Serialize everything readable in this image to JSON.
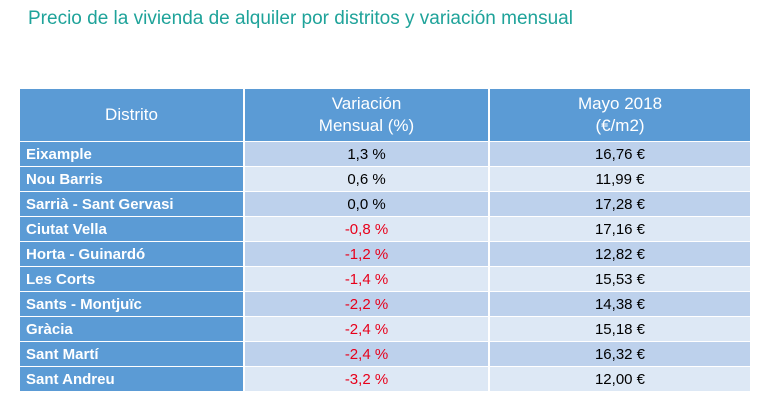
{
  "title": "Precio de la vivienda de alquiler por distritos y variación mensual",
  "table": {
    "headers": {
      "district": "Distrito",
      "variation_line1": "Variación",
      "variation_line2": "Mensual (%)",
      "price_line1": "Mayo 2018",
      "price_line2": "(€/m2)"
    },
    "rows": [
      {
        "district": "Eixample",
        "variation": "1,3 %",
        "price": "16,76 €",
        "negative": false
      },
      {
        "district": "Nou Barris",
        "variation": "0,6 %",
        "price": "11,99 €",
        "negative": false
      },
      {
        "district": "Sarrià - Sant Gervasi",
        "variation": "0,0 %",
        "price": "17,28 €",
        "negative": false
      },
      {
        "district": "Ciutat Vella",
        "variation": "-0,8 %",
        "price": "17,16 €",
        "negative": true
      },
      {
        "district": "Horta - Guinardó",
        "variation": "-1,2 %",
        "price": "12,82 €",
        "negative": true
      },
      {
        "district": "Les Corts",
        "variation": "-1,4 %",
        "price": "15,53 €",
        "negative": true
      },
      {
        "district": "Sants - Montjuïc",
        "variation": "-2,2 %",
        "price": "14,38 €",
        "negative": true
      },
      {
        "district": "Gràcia",
        "variation": "-2,4 %",
        "price": "15,18 €",
        "negative": true
      },
      {
        "district": "Sant Martí",
        "variation": "-2,4 %",
        "price": "16,32 €",
        "negative": true
      },
      {
        "district": "Sant Andreu",
        "variation": "-3,2 %",
        "price": "12,00 €",
        "negative": true
      }
    ]
  },
  "colors": {
    "title": "#1fa39a",
    "header_bg": "#5b9bd5",
    "row_odd": "#bdd1ec",
    "row_even": "#dde8f5",
    "negative_text": "#e8001a"
  }
}
